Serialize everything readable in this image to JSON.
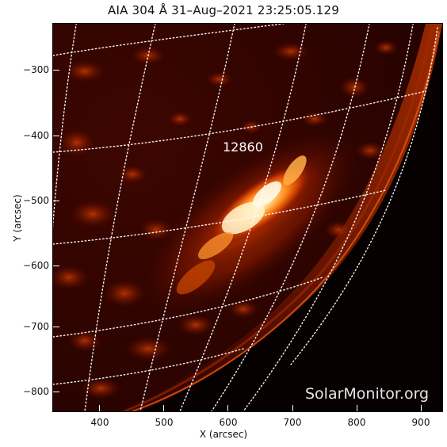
{
  "title": "AIA 304 Å 31–Aug–2021  23:25:05.129",
  "axes": {
    "xlabel": "X (arcsec)",
    "ylabel": "Y (arcsec)",
    "xticks": [
      "400",
      "500",
      "600",
      "700",
      "800",
      "900"
    ],
    "yticks": [
      "−300",
      "−400",
      "−500",
      "−600",
      "−700",
      "−800"
    ]
  },
  "active_region": {
    "label": "12860"
  },
  "watermark": "SolarMonitor.org",
  "colors": {
    "background": "#060000",
    "disk_dark": "#3a0500",
    "emission_mid": "#b33000",
    "emission_bright": "#ff9a2a",
    "emission_core": "#fff6d8",
    "grid": "#ffffff"
  }
}
